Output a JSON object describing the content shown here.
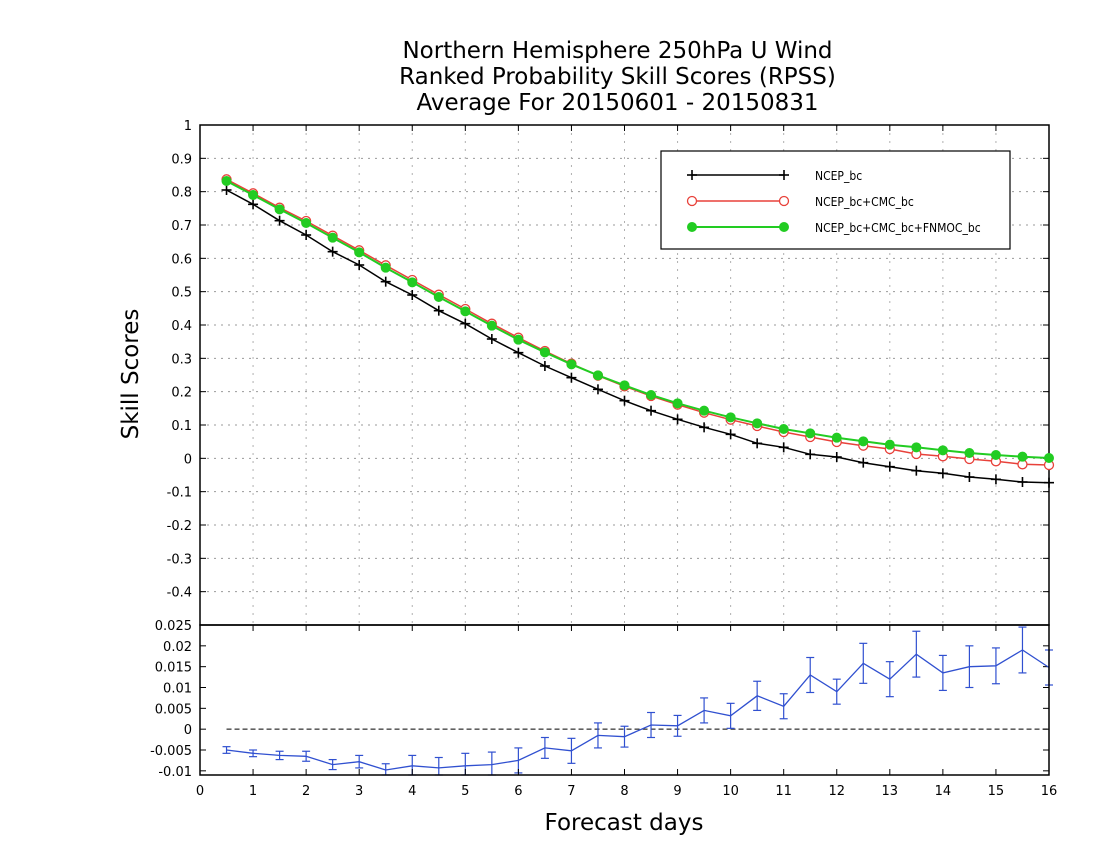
{
  "chart_data": [
    {
      "type": "line",
      "title": [
        "Northern Hemisphere 250hPa U Wind",
        "Ranked Probability Skill Scores (RPSS)",
        "Average For 20150601 - 20150831"
      ],
      "ylabel": "Skill Scores",
      "xlabel": "Forecast days",
      "xlim": [
        0,
        16
      ],
      "ylim": [
        -0.5,
        1
      ],
      "x_ticks": [
        "0",
        "1",
        "2",
        "3",
        "4",
        "5",
        "6",
        "7",
        "8",
        "9",
        "10",
        "11",
        "12",
        "13",
        "14",
        "15",
        "16"
      ],
      "y_ticks": [
        "1",
        "0.9",
        "0.8",
        "0.7",
        "0.6",
        "0.5",
        "0.4",
        "0.3",
        "0.2",
        "0.1",
        "0",
        "-0.1",
        "-0.2",
        "-0.3",
        "-0.4"
      ],
      "grid": true,
      "legend_position": "top-right",
      "x": [
        0.5,
        1,
        1.5,
        2,
        2.5,
        3,
        3.5,
        4,
        4.5,
        5,
        5.5,
        6,
        6.5,
        7,
        7.5,
        8,
        8.5,
        9,
        9.5,
        10,
        10.5,
        11,
        11.5,
        12,
        12.5,
        13,
        13.5,
        14,
        14.5,
        15,
        15.5,
        16
      ],
      "series": [
        {
          "name": "NCEP_bc",
          "color": "#000000",
          "marker": "plus",
          "values": [
            0.805,
            0.762,
            0.713,
            0.67,
            0.62,
            0.58,
            0.53,
            0.49,
            0.443,
            0.404,
            0.358,
            0.317,
            0.277,
            0.242,
            0.207,
            0.173,
            0.143,
            0.117,
            0.093,
            0.072,
            0.045,
            0.033,
            0.012,
            0.004,
            -0.013,
            -0.025,
            -0.037,
            -0.045,
            -0.056,
            -0.063,
            -0.071,
            -0.073
          ]
        },
        {
          "name": "NCEP_bc+CMC_bc",
          "color": "#e8413a",
          "marker": "open-circle",
          "values": [
            0.837,
            0.795,
            0.752,
            0.712,
            0.668,
            0.624,
            0.579,
            0.535,
            0.491,
            0.448,
            0.404,
            0.362,
            0.322,
            0.284,
            0.248,
            0.216,
            0.187,
            0.161,
            0.137,
            0.116,
            0.097,
            0.079,
            0.064,
            0.049,
            0.038,
            0.028,
            0.013,
            0.006,
            -0.002,
            -0.009,
            -0.018,
            -0.02
          ]
        },
        {
          "name": "NCEP_bc+CMC_bc+FNMOC_bc",
          "color": "#22cc22",
          "marker": "filled-circle",
          "values": [
            0.832,
            0.79,
            0.747,
            0.706,
            0.662,
            0.618,
            0.572,
            0.528,
            0.484,
            0.441,
            0.398,
            0.356,
            0.318,
            0.282,
            0.249,
            0.219,
            0.19,
            0.165,
            0.143,
            0.123,
            0.105,
            0.088,
            0.075,
            0.062,
            0.051,
            0.041,
            0.033,
            0.024,
            0.016,
            0.01,
            0.005,
            0.001
          ]
        }
      ]
    },
    {
      "type": "line",
      "ylim": [
        -0.011,
        0.025
      ],
      "y_ticks": [
        "0.025",
        "0.02",
        "0.015",
        "0.01",
        "0.005",
        "0",
        "-0.005",
        "-0.01"
      ],
      "reference_line": 0,
      "series": [
        {
          "name": "",
          "color": "#3050d0",
          "marker": "error-bar",
          "x": [
            0.5,
            1,
            1.5,
            2,
            2.5,
            3,
            3.5,
            4,
            4.5,
            5,
            5.5,
            6,
            6.5,
            7,
            7.5,
            8,
            8.5,
            9,
            9.5,
            10,
            10.5,
            11,
            11.5,
            12,
            12.5,
            13,
            13.5,
            14,
            14.5,
            15,
            15.5,
            16
          ],
          "values": [
            -0.005,
            -0.0058,
            -0.0063,
            -0.0065,
            -0.0085,
            -0.0078,
            -0.0098,
            -0.0088,
            -0.0093,
            -0.0088,
            -0.0085,
            -0.0075,
            -0.0045,
            -0.0052,
            -0.0015,
            -0.0018,
            0.001,
            0.0008,
            0.0045,
            0.0032,
            0.008,
            0.0055,
            0.013,
            0.009,
            0.0158,
            0.012,
            0.018,
            0.0135,
            0.015,
            0.0152,
            0.019,
            0.0148
          ],
          "error": [
            0.0008,
            0.0008,
            0.001,
            0.0012,
            0.0012,
            0.0015,
            0.0015,
            0.0025,
            0.0025,
            0.003,
            0.003,
            0.003,
            0.0025,
            0.003,
            0.003,
            0.0025,
            0.003,
            0.0025,
            0.003,
            0.003,
            0.0035,
            0.003,
            0.0042,
            0.003,
            0.0048,
            0.0042,
            0.0055,
            0.0042,
            0.005,
            0.0043,
            0.0055,
            0.0042
          ]
        }
      ]
    }
  ]
}
